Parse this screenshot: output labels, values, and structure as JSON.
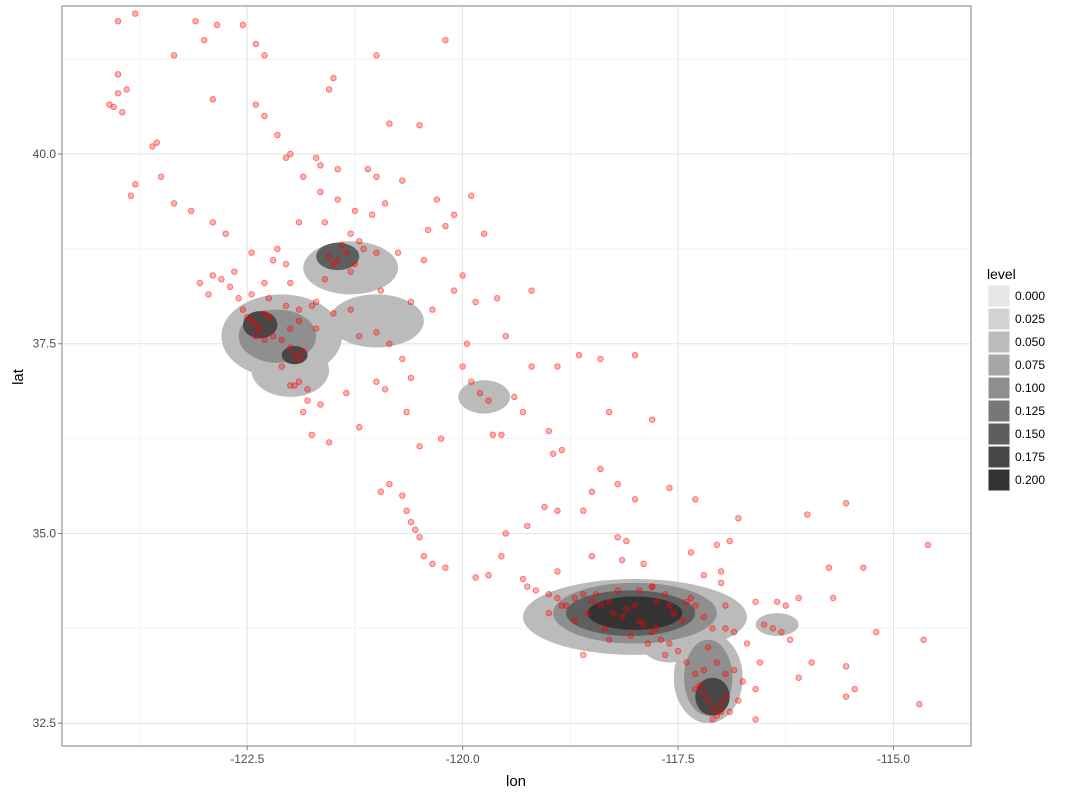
{
  "chart_data": {
    "type": "scatter",
    "xlabel": "lon",
    "ylabel": "lat",
    "xlim": [
      -124.65,
      -114.1
    ],
    "ylim": [
      32.2,
      41.95
    ],
    "x_ticks": [
      {
        "value": -122.5,
        "label": "-122.5"
      },
      {
        "value": -120.0,
        "label": "-120.0"
      },
      {
        "value": -117.5,
        "label": "-117.5"
      },
      {
        "value": -115.0,
        "label": "-115.0"
      }
    ],
    "y_ticks": [
      {
        "value": 32.5,
        "label": "32.5"
      },
      {
        "value": 35.0,
        "label": "35.0"
      },
      {
        "value": 37.5,
        "label": "37.5"
      },
      {
        "value": 40.0,
        "label": "40.0"
      }
    ],
    "grid": true,
    "point_color": "#ff0000",
    "legend": {
      "title": "level",
      "placement": "right",
      "entries": [
        {
          "label": "0.000",
          "color": "#e6e6e6"
        },
        {
          "label": "0.025",
          "color": "#d2d2d2"
        },
        {
          "label": "0.050",
          "color": "#bbbbbb"
        },
        {
          "label": "0.075",
          "color": "#a6a6a6"
        },
        {
          "label": "0.100",
          "color": "#8f8f8f"
        },
        {
          "label": "0.125",
          "color": "#777777"
        },
        {
          "label": "0.150",
          "color": "#5e5e5e"
        },
        {
          "label": "0.175",
          "color": "#474747"
        },
        {
          "label": "0.200",
          "color": "#333333"
        }
      ]
    },
    "density_regions": [
      {
        "cx": -122.1,
        "cy": 37.6,
        "rx": 0.7,
        "ry": 0.55,
        "color": "#bbbbbb"
      },
      {
        "cx": -121.3,
        "cy": 38.5,
        "rx": 0.55,
        "ry": 0.35,
        "color": "#bbbbbb"
      },
      {
        "cx": -121.0,
        "cy": 37.8,
        "rx": 0.55,
        "ry": 0.35,
        "color": "#bbbbbb"
      },
      {
        "cx": -122.0,
        "cy": 37.15,
        "rx": 0.45,
        "ry": 0.35,
        "color": "#bbbbbb"
      },
      {
        "cx": -122.15,
        "cy": 37.6,
        "rx": 0.45,
        "ry": 0.35,
        "color": "#8f8f8f"
      },
      {
        "cx": -121.45,
        "cy": 38.65,
        "rx": 0.25,
        "ry": 0.18,
        "color": "#5e5e5e"
      },
      {
        "cx": -122.35,
        "cy": 37.75,
        "rx": 0.2,
        "ry": 0.18,
        "color": "#474747"
      },
      {
        "cx": -121.95,
        "cy": 37.35,
        "rx": 0.15,
        "ry": 0.12,
        "color": "#474747"
      },
      {
        "cx": -119.75,
        "cy": 36.8,
        "rx": 0.3,
        "ry": 0.22,
        "color": "#bbbbbb"
      },
      {
        "cx": -118.0,
        "cy": 33.9,
        "rx": 1.3,
        "ry": 0.5,
        "color": "#bbbbbb"
      },
      {
        "cx": -117.15,
        "cy": 33.1,
        "rx": 0.4,
        "ry": 0.6,
        "color": "#bbbbbb"
      },
      {
        "cx": -117.6,
        "cy": 33.6,
        "rx": 0.35,
        "ry": 0.3,
        "color": "#bbbbbb"
      },
      {
        "cx": -118.0,
        "cy": 33.95,
        "rx": 0.95,
        "ry": 0.4,
        "color": "#8f8f8f"
      },
      {
        "cx": -117.15,
        "cy": 33.1,
        "rx": 0.28,
        "ry": 0.5,
        "color": "#8f8f8f"
      },
      {
        "cx": -118.05,
        "cy": 33.95,
        "rx": 0.75,
        "ry": 0.3,
        "color": "#5e5e5e"
      },
      {
        "cx": -118.0,
        "cy": 33.95,
        "rx": 0.55,
        "ry": 0.22,
        "color": "#333333"
      },
      {
        "cx": -117.1,
        "cy": 32.85,
        "rx": 0.2,
        "ry": 0.25,
        "color": "#474747"
      },
      {
        "cx": -116.35,
        "cy": 33.8,
        "rx": 0.25,
        "ry": 0.15,
        "color": "#bbbbbb"
      }
    ],
    "points": [
      [
        -124.0,
        41.75
      ],
      [
        -123.8,
        41.85
      ],
      [
        -123.1,
        41.75
      ],
      [
        -122.85,
        41.7
      ],
      [
        -122.55,
        41.7
      ],
      [
        -122.4,
        41.45
      ],
      [
        -122.3,
        41.3
      ],
      [
        -121.0,
        41.3
      ],
      [
        -120.2,
        41.5
      ],
      [
        -123.0,
        41.5
      ],
      [
        -123.35,
        41.3
      ],
      [
        -124.0,
        41.05
      ],
      [
        -123.9,
        40.85
      ],
      [
        -124.0,
        40.8
      ],
      [
        -124.1,
        40.65
      ],
      [
        -123.95,
        40.55
      ],
      [
        -122.9,
        40.72
      ],
      [
        -122.4,
        40.65
      ],
      [
        -122.3,
        40.5
      ],
      [
        -122.15,
        40.25
      ],
      [
        -121.5,
        41.0
      ],
      [
        -121.55,
        40.85
      ],
      [
        -120.85,
        40.4
      ],
      [
        -120.5,
        40.38
      ],
      [
        -122.05,
        39.95
      ],
      [
        -121.65,
        39.85
      ],
      [
        -121.45,
        39.8
      ],
      [
        -121.1,
        39.8
      ],
      [
        -121.0,
        39.7
      ],
      [
        -123.5,
        39.7
      ],
      [
        -123.8,
        39.6
      ],
      [
        -121.85,
        39.7
      ],
      [
        -121.65,
        39.5
      ],
      [
        -121.45,
        39.4
      ],
      [
        -121.25,
        39.25
      ],
      [
        -121.05,
        39.2
      ],
      [
        -120.9,
        39.35
      ],
      [
        -120.4,
        39.0
      ],
      [
        -120.2,
        39.05
      ],
      [
        -119.9,
        39.45
      ],
      [
        -119.75,
        38.95
      ],
      [
        -123.85,
        39.45
      ],
      [
        -123.35,
        39.35
      ],
      [
        -123.15,
        39.25
      ],
      [
        -122.9,
        39.1
      ],
      [
        -122.75,
        38.95
      ],
      [
        -122.45,
        38.7
      ],
      [
        -122.2,
        38.6
      ],
      [
        -122.65,
        38.45
      ],
      [
        -122.9,
        38.4
      ],
      [
        -121.9,
        39.1
      ],
      [
        -121.6,
        39.1
      ],
      [
        -121.3,
        38.95
      ],
      [
        -121.15,
        38.75
      ],
      [
        -121.0,
        38.7
      ],
      [
        -120.75,
        38.7
      ],
      [
        -120.45,
        38.6
      ],
      [
        -120.1,
        38.2
      ],
      [
        -119.6,
        38.1
      ],
      [
        -119.2,
        38.2
      ],
      [
        -121.55,
        38.65
      ],
      [
        -121.45,
        38.6
      ],
      [
        -121.35,
        38.7
      ],
      [
        -121.25,
        38.55
      ],
      [
        -121.2,
        38.85
      ],
      [
        -121.4,
        38.8
      ],
      [
        -121.5,
        38.55
      ],
      [
        -121.3,
        38.45
      ],
      [
        -122.5,
        37.85
      ],
      [
        -122.45,
        37.8
      ],
      [
        -122.4,
        37.75
      ],
      [
        -122.35,
        37.7
      ],
      [
        -122.3,
        37.9
      ],
      [
        -122.25,
        37.85
      ],
      [
        -122.2,
        37.6
      ],
      [
        -122.1,
        37.55
      ],
      [
        -122.0,
        37.45
      ],
      [
        -121.95,
        37.35
      ],
      [
        -121.9,
        37.3
      ],
      [
        -121.85,
        37.4
      ],
      [
        -122.3,
        37.55
      ],
      [
        -122.4,
        37.6
      ],
      [
        -122.55,
        37.95
      ],
      [
        -122.6,
        38.1
      ],
      [
        -122.7,
        38.25
      ],
      [
        -122.8,
        38.35
      ],
      [
        -122.25,
        38.1
      ],
      [
        -122.05,
        38.0
      ],
      [
        -121.9,
        37.95
      ],
      [
        -121.75,
        38.0
      ],
      [
        -121.5,
        37.9
      ],
      [
        -121.3,
        37.95
      ],
      [
        -121.2,
        37.6
      ],
      [
        -121.0,
        37.65
      ],
      [
        -120.85,
        37.5
      ],
      [
        -120.7,
        37.3
      ],
      [
        -120.6,
        37.05
      ],
      [
        -121.9,
        37.0
      ],
      [
        -122.0,
        36.95
      ],
      [
        -121.8,
        36.75
      ],
      [
        -121.85,
        36.6
      ],
      [
        -121.75,
        36.3
      ],
      [
        -121.35,
        36.85
      ],
      [
        -121.2,
        36.4
      ],
      [
        -120.65,
        36.6
      ],
      [
        -120.5,
        36.15
      ],
      [
        -120.25,
        36.25
      ],
      [
        -119.8,
        36.85
      ],
      [
        -119.7,
        36.75
      ],
      [
        -119.4,
        36.8
      ],
      [
        -119.3,
        36.6
      ],
      [
        -119.0,
        36.35
      ],
      [
        -118.95,
        36.05
      ],
      [
        -119.65,
        36.3
      ],
      [
        -119.55,
        36.3
      ],
      [
        -119.95,
        37.5
      ],
      [
        -120.0,
        37.2
      ],
      [
        -119.9,
        37.0
      ],
      [
        -119.2,
        37.2
      ],
      [
        -118.9,
        37.2
      ],
      [
        -118.65,
        37.35
      ],
      [
        -118.4,
        37.3
      ],
      [
        -118.0,
        37.35
      ],
      [
        -117.8,
        36.5
      ],
      [
        -118.3,
        36.6
      ],
      [
        -118.85,
        36.1
      ],
      [
        -119.5,
        37.6
      ],
      [
        -120.95,
        35.55
      ],
      [
        -120.85,
        35.65
      ],
      [
        -120.7,
        35.5
      ],
      [
        -120.65,
        35.3
      ],
      [
        -120.6,
        35.15
      ],
      [
        -120.55,
        35.05
      ],
      [
        -120.5,
        34.95
      ],
      [
        -120.45,
        34.7
      ],
      [
        -120.35,
        34.6
      ],
      [
        -120.2,
        34.55
      ],
      [
        -119.85,
        34.42
      ],
      [
        -119.7,
        34.45
      ],
      [
        -119.3,
        34.4
      ],
      [
        -119.15,
        34.25
      ],
      [
        -119.0,
        34.2
      ],
      [
        -118.9,
        34.15
      ],
      [
        -118.8,
        34.05
      ],
      [
        -118.7,
        34.15
      ],
      [
        -118.6,
        34.2
      ],
      [
        -118.5,
        34.1
      ],
      [
        -118.4,
        34.05
      ],
      [
        -118.3,
        34.1
      ],
      [
        -118.25,
        33.95
      ],
      [
        -118.15,
        33.9
      ],
      [
        -118.1,
        34.0
      ],
      [
        -118.0,
        34.05
      ],
      [
        -117.95,
        33.85
      ],
      [
        -117.9,
        33.8
      ],
      [
        -117.8,
        33.7
      ],
      [
        -117.7,
        33.6
      ],
      [
        -117.6,
        33.55
      ],
      [
        -117.5,
        33.45
      ],
      [
        -117.4,
        33.3
      ],
      [
        -117.3,
        33.15
      ],
      [
        -117.25,
        33.0
      ],
      [
        -117.2,
        32.9
      ],
      [
        -117.15,
        32.8
      ],
      [
        -117.1,
        32.7
      ],
      [
        -117.05,
        32.6
      ],
      [
        -117.0,
        32.75
      ],
      [
        -116.95,
        32.85
      ],
      [
        -117.2,
        33.9
      ],
      [
        -117.3,
        34.05
      ],
      [
        -117.4,
        34.1
      ],
      [
        -117.6,
        34.05
      ],
      [
        -117.65,
        34.2
      ],
      [
        -117.8,
        34.3
      ],
      [
        -118.15,
        34.65
      ],
      [
        -118.1,
        34.9
      ],
      [
        -117.9,
        34.6
      ],
      [
        -117.0,
        34.5
      ],
      [
        -117.2,
        34.45
      ],
      [
        -117.35,
        34.15
      ],
      [
        -116.5,
        33.8
      ],
      [
        -116.4,
        33.75
      ],
      [
        -116.3,
        33.7
      ],
      [
        -116.2,
        33.6
      ],
      [
        -116.55,
        33.3
      ],
      [
        -116.85,
        33.2
      ],
      [
        -116.75,
        33.05
      ],
      [
        -116.6,
        32.95
      ],
      [
        -116.9,
        32.65
      ],
      [
        -115.55,
        32.85
      ],
      [
        -115.45,
        32.95
      ],
      [
        -115.55,
        33.25
      ],
      [
        -115.95,
        33.3
      ],
      [
        -116.1,
        33.1
      ],
      [
        -115.2,
        33.7
      ],
      [
        -114.65,
        33.6
      ],
      [
        -114.6,
        34.85
      ],
      [
        -115.35,
        34.55
      ],
      [
        -115.55,
        35.4
      ],
      [
        -116.0,
        35.25
      ],
      [
        -116.8,
        35.2
      ],
      [
        -116.9,
        34.9
      ],
      [
        -117.05,
        34.85
      ],
      [
        -117.35,
        34.75
      ],
      [
        -118.2,
        34.95
      ],
      [
        -117.3,
        35.45
      ],
      [
        -117.6,
        35.6
      ],
      [
        -118.0,
        35.45
      ],
      [
        -118.2,
        35.65
      ],
      [
        -118.4,
        35.85
      ],
      [
        -118.5,
        35.55
      ],
      [
        -118.6,
        35.3
      ],
      [
        -118.9,
        35.3
      ],
      [
        -119.05,
        35.35
      ],
      [
        -119.25,
        35.1
      ],
      [
        -119.5,
        35.0
      ],
      [
        -119.55,
        34.7
      ],
      [
        -118.5,
        34.7
      ],
      [
        -118.9,
        34.5
      ],
      [
        -117.8,
        34.3
      ],
      [
        -117.1,
        33.75
      ],
      [
        -116.95,
        33.75
      ],
      [
        -116.85,
        33.7
      ],
      [
        -114.7,
        32.75
      ],
      [
        -116.6,
        32.55
      ],
      [
        -123.55,
        40.15
      ],
      [
        -123.6,
        40.1
      ],
      [
        -124.05,
        40.62
      ],
      [
        -122.0,
        40.0
      ],
      [
        -121.7,
        39.95
      ],
      [
        -120.7,
        39.65
      ],
      [
        -120.3,
        39.4
      ],
      [
        -120.1,
        39.2
      ],
      [
        -120.0,
        38.4
      ],
      [
        -119.85,
        38.05
      ],
      [
        -120.35,
        37.95
      ],
      [
        -120.6,
        38.05
      ],
      [
        -120.95,
        38.2
      ],
      [
        -121.7,
        38.05
      ],
      [
        -121.6,
        38.35
      ],
      [
        -122.0,
        38.3
      ],
      [
        -122.3,
        38.3
      ],
      [
        -122.45,
        38.15
      ],
      [
        -122.0,
        37.7
      ],
      [
        -121.9,
        37.8
      ],
      [
        -121.7,
        37.7
      ],
      [
        -122.1,
        37.2
      ],
      [
        -121.95,
        36.95
      ],
      [
        -121.8,
        36.9
      ],
      [
        -121.65,
        36.7
      ],
      [
        -121.55,
        36.2
      ],
      [
        -121.0,
        37.0
      ],
      [
        -120.9,
        36.9
      ],
      [
        -122.15,
        38.75
      ],
      [
        -122.05,
        38.55
      ],
      [
        -122.95,
        38.15
      ],
      [
        -123.05,
        38.3
      ],
      [
        -118.7,
        33.85
      ],
      [
        -118.35,
        33.75
      ],
      [
        -118.05,
        33.65
      ],
      [
        -117.85,
        33.55
      ],
      [
        -117.65,
        33.4
      ],
      [
        -117.75,
        33.75
      ],
      [
        -118.3,
        33.6
      ],
      [
        -118.6,
        33.4
      ],
      [
        -119.0,
        33.95
      ],
      [
        -119.25,
        34.3
      ],
      [
        -118.85,
        34.05
      ],
      [
        -118.55,
        33.95
      ],
      [
        -118.45,
        34.2
      ],
      [
        -118.2,
        34.25
      ],
      [
        -117.95,
        34.25
      ],
      [
        -117.75,
        34.1
      ],
      [
        -117.55,
        33.95
      ],
      [
        -117.45,
        33.85
      ],
      [
        -117.15,
        33.5
      ],
      [
        -117.05,
        33.3
      ],
      [
        -116.95,
        33.15
      ],
      [
        -117.2,
        33.2
      ],
      [
        -117.3,
        32.95
      ],
      [
        -117.0,
        32.65
      ],
      [
        -117.1,
        32.55
      ],
      [
        -116.8,
        32.8
      ],
      [
        -116.7,
        33.55
      ],
      [
        -116.35,
        34.1
      ],
      [
        -116.6,
        34.1
      ],
      [
        -116.25,
        34.05
      ],
      [
        -116.1,
        34.15
      ],
      [
        -115.7,
        34.15
      ],
      [
        -115.75,
        34.55
      ],
      [
        -116.95,
        34.05
      ],
      [
        -117.0,
        34.35
      ]
    ]
  }
}
